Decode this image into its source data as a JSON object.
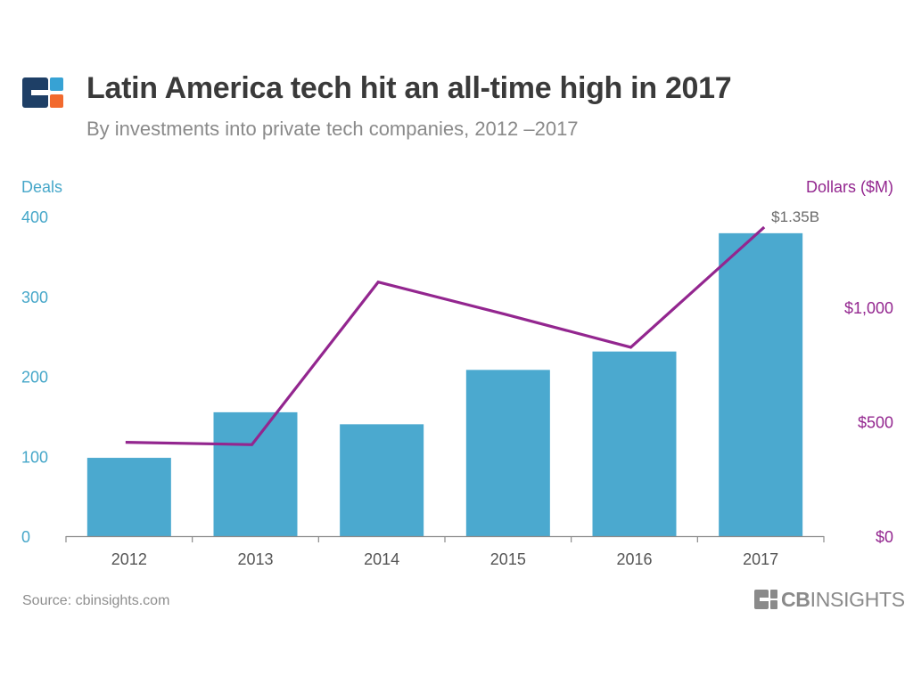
{
  "header": {
    "title": "Latin America tech hit an all-time high in 2017",
    "subtitle": "By investments into private tech companies, 2012 –2017"
  },
  "footer": {
    "source": "Source: cbinsights.com",
    "brand_bold": "CB",
    "brand_rest": "INSIGHTS"
  },
  "colors": {
    "bars": "#4ba9cf",
    "line": "#93268f",
    "left_axis_text": "#46a7c9",
    "right_axis_text": "#93268f",
    "logo_navy": "#1e3f66",
    "logo_orange": "#f26a2e",
    "logo_blue": "#37a2d4"
  },
  "chart_data": {
    "type": "bar+line",
    "categories": [
      "2012",
      "2013",
      "2014",
      "2015",
      "2016",
      "2017"
    ],
    "series": [
      {
        "name": "Deals",
        "type": "bar",
        "axis": "left",
        "values": [
          98,
          155,
          140,
          208,
          231,
          379
        ]
      },
      {
        "name": "Dollars ($M)",
        "type": "line",
        "axis": "right",
        "values": [
          410,
          400,
          1110,
          970,
          825,
          1350
        ]
      }
    ],
    "left_axis": {
      "label": "Deals",
      "ylim": [
        0,
        400
      ],
      "ticks": [
        0,
        100,
        200,
        300,
        400
      ],
      "tick_labels": [
        "0",
        "100",
        "200",
        "300",
        "400"
      ]
    },
    "right_axis": {
      "label": "Dollars ($M)",
      "ylim": [
        0,
        1400
      ],
      "ticks": [
        0,
        500,
        1000
      ],
      "tick_labels": [
        "$0",
        "$500",
        "$1,000"
      ]
    },
    "annotations": [
      {
        "category": "2017",
        "series": "Dollars ($M)",
        "text": "$1.35B"
      }
    ],
    "grid": false
  }
}
